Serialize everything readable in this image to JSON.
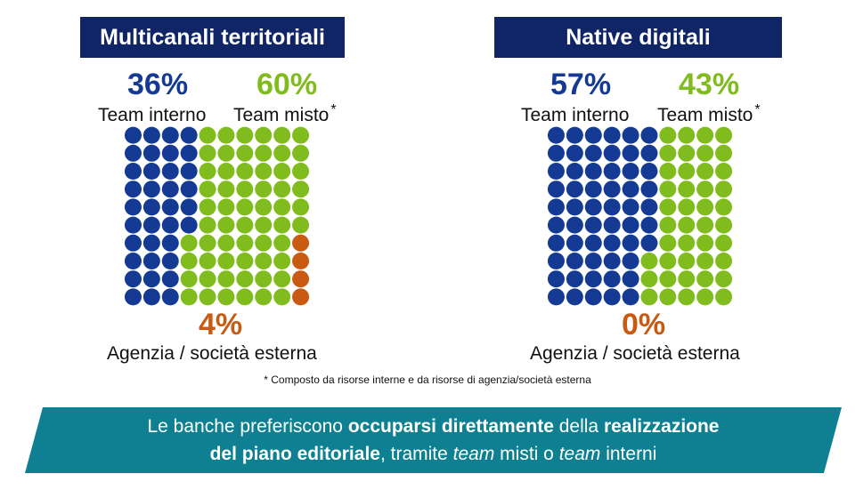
{
  "panels": [
    {
      "title": "Multicanali territoriali",
      "team_interno": {
        "pct": "36%",
        "label": "Team interno"
      },
      "team_misto": {
        "pct": "60%",
        "label": "Team misto",
        "marker": "*"
      },
      "agenzia": {
        "pct": "4%",
        "label": "Agenzia / società esterna"
      }
    },
    {
      "title": "Native digitali",
      "team_interno": {
        "pct": "57%",
        "label": "Team interno"
      },
      "team_misto": {
        "pct": "43%",
        "label": "Team misto",
        "marker": "*"
      },
      "agenzia": {
        "pct": "0%",
        "label": "Agenzia / società esterna"
      }
    }
  ],
  "footnote": "* Composto da risorse interne e da risorse di agenzia/società esterna",
  "banner": {
    "line1": {
      "a": "Le banche preferiscono ",
      "b": "occuparsi direttamente",
      "c": " della ",
      "d": "realizzazione"
    },
    "line2": {
      "a": "del piano editoriale",
      "b": ", tramite ",
      "c": "team",
      "d": " misti o ",
      "e": "team",
      "f": " interni"
    }
  },
  "colors": {
    "interno": "#153a93",
    "misto": "#80bc1d",
    "agenzia": "#c85a12",
    "title_bg": "#0f2566",
    "banner_bg": "#0e8091"
  },
  "chart_data": [
    {
      "type": "waffle",
      "title": "Multicanali territoriali",
      "grid": [
        10,
        10
      ],
      "categories": [
        "Team interno",
        "Team misto",
        "Agenzia / società esterna"
      ],
      "values": [
        36,
        60,
        4
      ]
    },
    {
      "type": "waffle",
      "title": "Native digitali",
      "grid": [
        10,
        10
      ],
      "categories": [
        "Team interno",
        "Team misto",
        "Agenzia / società esterna"
      ],
      "values": [
        57,
        43,
        0
      ]
    }
  ]
}
